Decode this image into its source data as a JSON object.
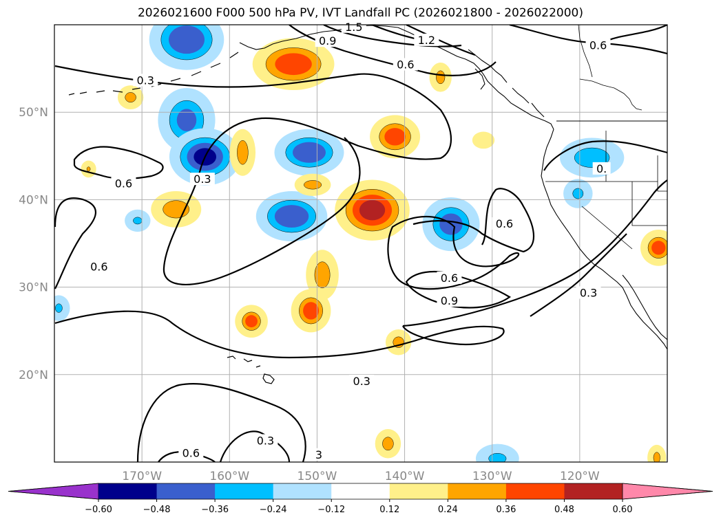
{
  "title": "2026021600 F000 500 hPa PV, IVT Landfall PC (2026021800 - 2026022000)",
  "map": {
    "projection": "equirectangular",
    "lon_range": [
      -180,
      -110
    ],
    "lat_range": [
      10,
      60
    ],
    "gridlines": true,
    "lon_ticks": [
      {
        "value": -170,
        "label": "170°W"
      },
      {
        "value": -160,
        "label": "160°W"
      },
      {
        "value": -150,
        "label": "150°W"
      },
      {
        "value": -140,
        "label": "140°W"
      },
      {
        "value": -130,
        "label": "130°W"
      },
      {
        "value": -120,
        "label": "120°W"
      }
    ],
    "lat_ticks": [
      {
        "value": 50,
        "label": "50°N"
      },
      {
        "value": 40,
        "label": "40°N"
      },
      {
        "value": 30,
        "label": "30°N"
      },
      {
        "value": 20,
        "label": "20°N"
      }
    ]
  },
  "contour_labels": [
    {
      "text": "1.5",
      "lon": -145.8,
      "lat": 59.7
    },
    {
      "text": "0.9",
      "lon": -148.8,
      "lat": 58.1
    },
    {
      "text": "1.2",
      "lon": -137.5,
      "lat": 58.2
    },
    {
      "text": "0.6",
      "lon": -139.9,
      "lat": 55.4
    },
    {
      "text": "0.6",
      "lon": -117.9,
      "lat": 57.6
    },
    {
      "text": "0.3",
      "lon": -169.6,
      "lat": 53.6
    },
    {
      "text": "0.6",
      "lon": -172.1,
      "lat": 41.8
    },
    {
      "text": "0.3",
      "lon": -163.1,
      "lat": 42.3
    },
    {
      "text": "0.6",
      "lon": -174.9,
      "lat": 32.3
    },
    {
      "text": "0.6",
      "lon": -128.6,
      "lat": 37.2
    },
    {
      "text": "0.6",
      "lon": -134.9,
      "lat": 31.0
    },
    {
      "text": "0.9",
      "lon": -134.9,
      "lat": 28.4
    },
    {
      "text": "0.3",
      "lon": -119.0,
      "lat": 29.3
    },
    {
      "text": "0.3",
      "lon": -144.9,
      "lat": 19.2
    },
    {
      "text": "0.3",
      "lon": -155.9,
      "lat": 12.4
    },
    {
      "text": "0.6",
      "lon": -164.4,
      "lat": 11.0
    },
    {
      "text": "3",
      "lon": -149.8,
      "lat": 10.8
    },
    {
      "text": "0.",
      "lon": -117.5,
      "lat": 43.5
    }
  ],
  "pv_anomaly_blobs": [
    {
      "lon": -164.9,
      "lat": 58.3,
      "rx": 3.8,
      "ry": 3.0,
      "value": -0.45
    },
    {
      "lon": -164.9,
      "lat": 49.1,
      "rx": 2.8,
      "ry": 3.2,
      "value": -0.36
    },
    {
      "lon": -162.8,
      "lat": 44.9,
      "rx": 3.6,
      "ry": 2.8,
      "value": -0.48
    },
    {
      "lon": -150.9,
      "lat": 45.4,
      "rx": 3.5,
      "ry": 2.2,
      "value": -0.45
    },
    {
      "lon": -152.9,
      "lat": 38.1,
      "rx": 3.6,
      "ry": 2.4,
      "value": -0.45
    },
    {
      "lon": -134.7,
      "lat": 37.2,
      "rx": 2.8,
      "ry": 2.6,
      "value": -0.4
    },
    {
      "lon": -118.6,
      "lat": 44.8,
      "rx": 3.2,
      "ry": 1.8,
      "value": -0.3
    },
    {
      "lon": -120.2,
      "lat": 40.7,
      "rx": 1.2,
      "ry": 1.2,
      "value": -0.24
    },
    {
      "lon": -170.5,
      "lat": 37.6,
      "rx": 1.0,
      "ry": 0.8,
      "value": -0.24
    },
    {
      "lon": -179.5,
      "lat": 27.6,
      "rx": 0.8,
      "ry": 1.0,
      "value": -0.24
    },
    {
      "lon": -129.4,
      "lat": 10.4,
      "rx": 2.0,
      "ry": 1.2,
      "value": -0.24
    },
    {
      "lon": -152.7,
      "lat": 55.5,
      "rx": 4.2,
      "ry": 2.5,
      "value": 0.42
    },
    {
      "lon": -141.1,
      "lat": 47.2,
      "rx": 2.4,
      "ry": 2.0,
      "value": 0.42
    },
    {
      "lon": -143.7,
      "lat": 38.8,
      "rx": 3.8,
      "ry": 3.0,
      "value": 0.5
    },
    {
      "lon": -149.4,
      "lat": 31.4,
      "rx": 1.4,
      "ry": 2.4,
      "value": 0.3
    },
    {
      "lon": -150.7,
      "lat": 27.3,
      "rx": 1.8,
      "ry": 2.0,
      "value": 0.42
    },
    {
      "lon": -157.5,
      "lat": 26.1,
      "rx": 1.4,
      "ry": 1.4,
      "value": 0.42
    },
    {
      "lon": -166.1,
      "lat": 38.9,
      "rx": 2.4,
      "ry": 1.6,
      "value": 0.3
    },
    {
      "lon": -158.5,
      "lat": 45.4,
      "rx": 1.0,
      "ry": 2.2,
      "value": 0.3
    },
    {
      "lon": -150.5,
      "lat": 41.7,
      "rx": 1.6,
      "ry": 0.8,
      "value": 0.3
    },
    {
      "lon": -171.3,
      "lat": 51.7,
      "rx": 1.0,
      "ry": 0.9,
      "value": 0.3
    },
    {
      "lon": -135.9,
      "lat": 54.0,
      "rx": 0.8,
      "ry": 1.2,
      "value": 0.3
    },
    {
      "lon": -131.0,
      "lat": 46.8,
      "rx": 0.8,
      "ry": 0.5,
      "value": 0.2
    },
    {
      "lon": -111.0,
      "lat": 34.5,
      "rx": 1.6,
      "ry": 1.6,
      "value": 0.42
    },
    {
      "lon": -140.7,
      "lat": 23.7,
      "rx": 1.0,
      "ry": 1.0,
      "value": 0.3
    },
    {
      "lon": -141.9,
      "lat": 12.1,
      "rx": 1.0,
      "ry": 1.2,
      "value": 0.3
    },
    {
      "lon": -111.2,
      "lat": 10.5,
      "rx": 0.6,
      "ry": 1.0,
      "value": 0.3
    },
    {
      "lon": -176.1,
      "lat": 43.5,
      "rx": 0.4,
      "ry": 0.5,
      "value": 0.24
    }
  ],
  "colorbar": {
    "levels": [
      "−0.60",
      "−0.48",
      "−0.36",
      "−0.24",
      "−0.12",
      "0.12",
      "0.24",
      "0.36",
      "0.48",
      "0.60"
    ],
    "colors": [
      "#9932cc",
      "#00008b",
      "#3a5fcd",
      "#00bfff",
      "#b0e2ff",
      "#ffffff",
      "#fff08a",
      "#ffa500",
      "#ff4500",
      "#b22222",
      "#ff88aa"
    ]
  }
}
